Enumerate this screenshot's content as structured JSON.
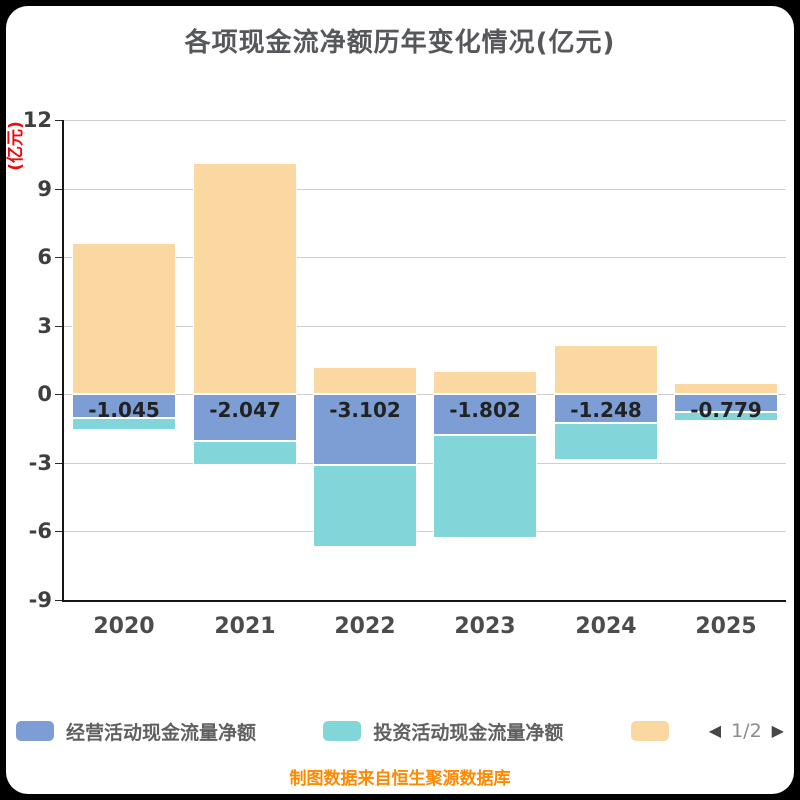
{
  "title": "各项现金流净额历年变化情况(亿元)",
  "y_axis_unit": "(亿元)",
  "footer": "制图数据来自恒生聚源数据库",
  "legend": {
    "items": [
      {
        "label": "经营活动现金流量净额",
        "color": "#7d9ed4"
      },
      {
        "label": "投资活动现金流量净额",
        "color": "#82d6da"
      },
      {
        "label": "",
        "color": "#fbd8a1"
      }
    ],
    "pager": {
      "prev_icon": "◀",
      "label": "1/2",
      "next_icon": "▶"
    }
  },
  "chart_data": {
    "type": "bar",
    "stacked": true,
    "grid": true,
    "legend_position": "bottom",
    "categories": [
      "2020",
      "2021",
      "2022",
      "2023",
      "2024",
      "2025"
    ],
    "y_axis": {
      "min": -9,
      "max": 12,
      "ticks": [
        12,
        9,
        6,
        3,
        0,
        -3,
        -6,
        -9
      ]
    },
    "series": [
      {
        "key": "operating",
        "name": "经营活动现金流量净额",
        "color": "#7d9ed4",
        "values": [
          -1.045,
          -2.047,
          -3.102,
          -1.802,
          -1.248,
          -0.779
        ],
        "data_labels": [
          "-1.045",
          "-2.047",
          "-3.102",
          "-1.802",
          "-1.248",
          "-0.779"
        ]
      },
      {
        "key": "investing",
        "name": "投资活动现金流量净额",
        "color": "#82d6da",
        "values": [
          -0.52,
          -1.05,
          -3.58,
          -4.49,
          -1.63,
          -0.39
        ]
      },
      {
        "key": "s3",
        "name": "",
        "color": "#fbd8a1",
        "values": [
          6.62,
          10.12,
          1.19,
          1.02,
          2.16,
          0.49
        ]
      }
    ]
  }
}
